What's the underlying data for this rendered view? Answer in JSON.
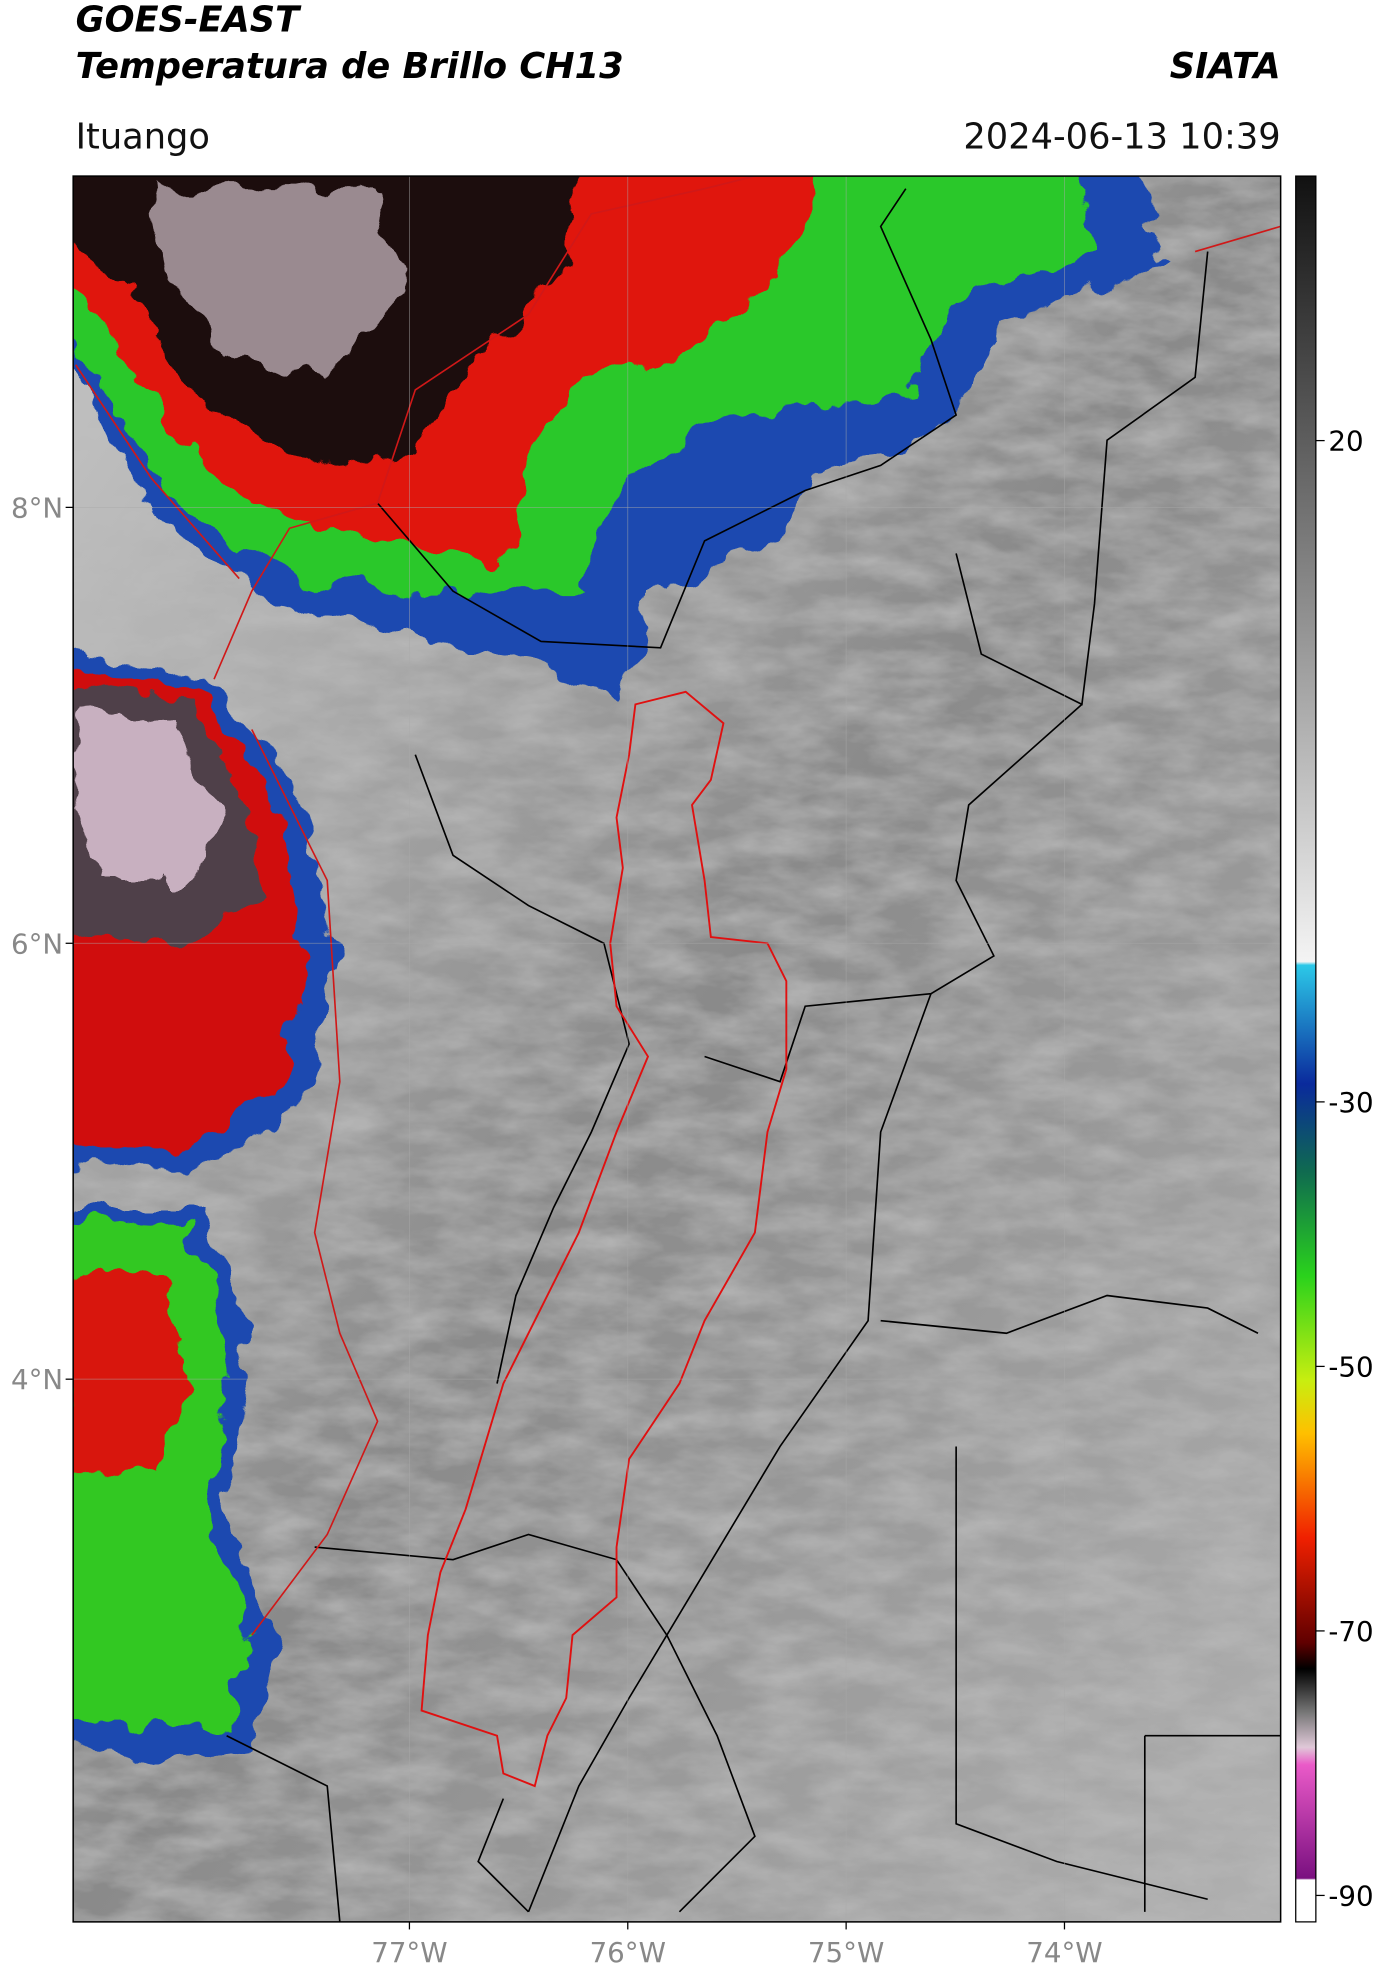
{
  "header": {
    "title": "GOES-EAST",
    "subtitle": "Temperatura de Brillo CH13",
    "source": "SIATA",
    "location": "Ituango",
    "datetime": "2024-06-13 10:39"
  },
  "map": {
    "xlim": [
      -78.54,
      -73.01
    ],
    "ylim": [
      1.51,
      9.52
    ],
    "yticks": [
      {
        "value": 8,
        "label": "8°N"
      },
      {
        "value": 6,
        "label": "6°N"
      },
      {
        "value": 4,
        "label": "4°N"
      }
    ],
    "xticks": [
      {
        "value": -77,
        "label": "77°W"
      },
      {
        "value": -76,
        "label": "76°W"
      },
      {
        "value": -75,
        "label": "75°W"
      },
      {
        "value": -74,
        "label": "74°W"
      }
    ],
    "grid": true
  },
  "colorbar": {
    "lim": [
      -92,
      40
    ],
    "ticks": [
      20,
      -30,
      -50,
      -70,
      -90
    ]
  }
}
